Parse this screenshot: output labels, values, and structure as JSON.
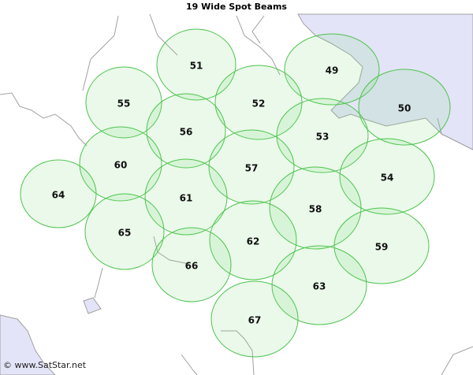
{
  "title": "19 Wide Spot Beams",
  "beams": [
    "51",
    "49",
    "55",
    "52",
    "50",
    "56",
    "53",
    "60",
    "57",
    "54",
    "64",
    "61",
    "58",
    "65",
    "62",
    "59",
    "66",
    "63",
    "67"
  ],
  "footer": "© www.SatStar.net"
}
